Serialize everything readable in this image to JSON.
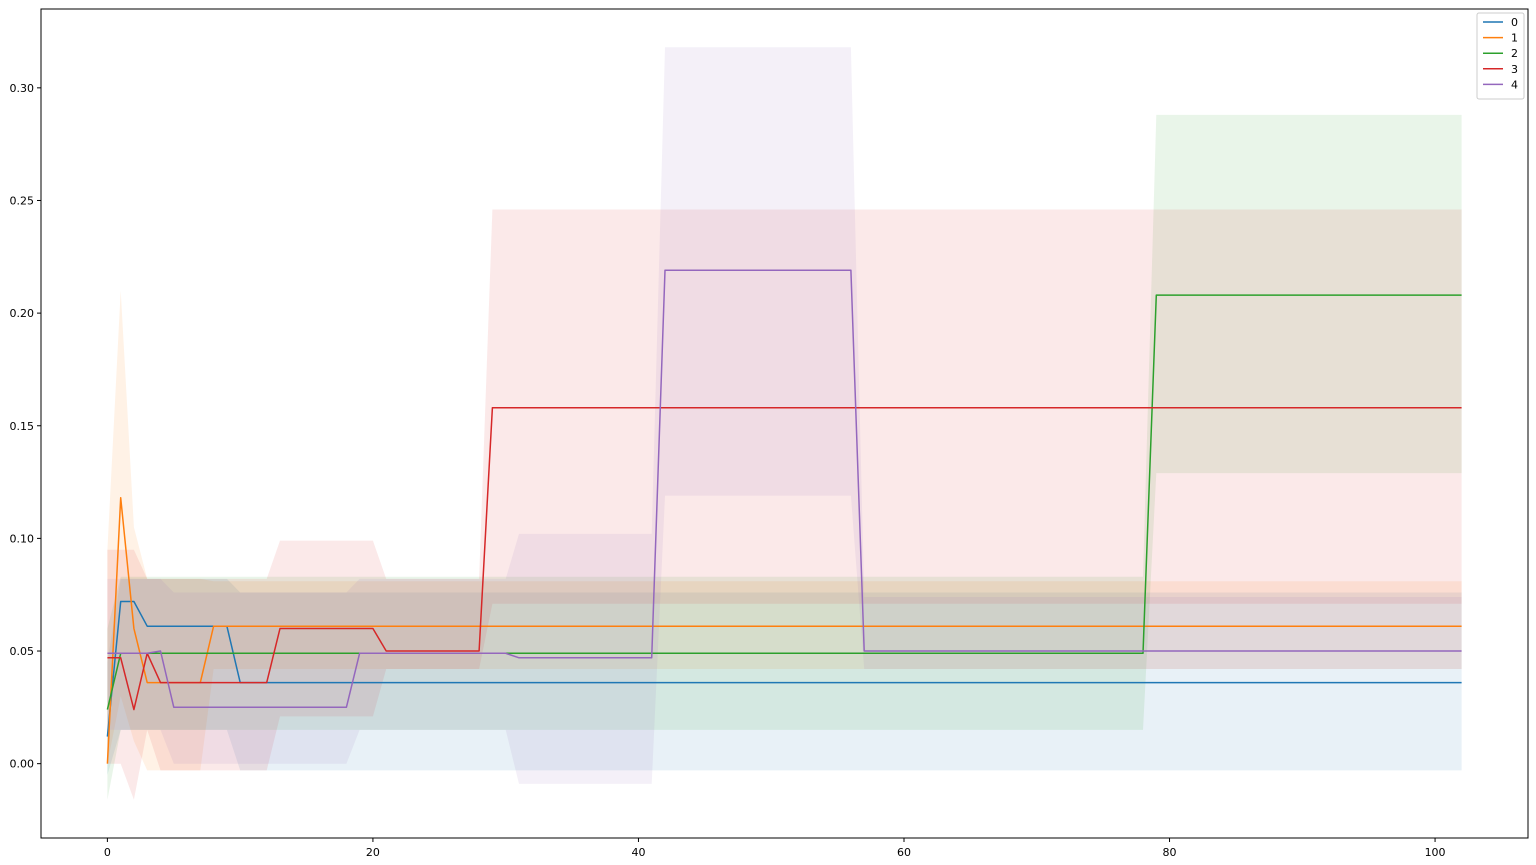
{
  "chart_data": {
    "type": "line",
    "title": "",
    "xlabel": "",
    "ylabel": "",
    "xlim": [
      -5,
      107
    ],
    "ylim": [
      -0.033,
      0.335
    ],
    "xticks": [
      0,
      20,
      40,
      60,
      80,
      100
    ],
    "yticks": [
      0.0,
      0.05,
      0.1,
      0.15,
      0.2,
      0.25,
      0.3
    ],
    "xtick_labels": [
      "0",
      "20",
      "40",
      "60",
      "80",
      "100"
    ],
    "ytick_labels": [
      "0.00",
      "0.05",
      "0.10",
      "0.15",
      "0.20",
      "0.25",
      "0.30"
    ],
    "grid": false,
    "legend_position": "top-right",
    "band_opacity": 0.1,
    "series": [
      {
        "name": "0",
        "color": "#1f77b4",
        "points": [
          [
            0,
            0.012
          ],
          [
            1,
            0.072
          ],
          [
            2,
            0.072
          ],
          [
            3,
            0.061
          ],
          [
            9,
            0.061
          ],
          [
            10,
            0.036
          ],
          [
            102,
            0.036
          ]
        ],
        "band_upper": [
          [
            0,
            0.045
          ],
          [
            1,
            0.082
          ],
          [
            3,
            0.082
          ],
          [
            9,
            0.082
          ],
          [
            10,
            0.076
          ],
          [
            102,
            0.076
          ]
        ],
        "band_lower": [
          [
            0,
            -0.005
          ],
          [
            1,
            0.015
          ],
          [
            3,
            0.015
          ],
          [
            9,
            0.015
          ],
          [
            10,
            -0.003
          ],
          [
            102,
            -0.003
          ]
        ]
      },
      {
        "name": "1",
        "color": "#ff7f0e",
        "points": [
          [
            0,
            0.0
          ],
          [
            1,
            0.118
          ],
          [
            2,
            0.06
          ],
          [
            3,
            0.036
          ],
          [
            7,
            0.036
          ],
          [
            8,
            0.061
          ],
          [
            102,
            0.061
          ]
        ],
        "band_upper": [
          [
            0,
            0.095
          ],
          [
            1,
            0.21
          ],
          [
            2,
            0.105
          ],
          [
            3,
            0.082
          ],
          [
            7,
            0.082
          ],
          [
            8,
            0.081
          ],
          [
            102,
            0.081
          ]
        ],
        "band_lower": [
          [
            0,
            0.0
          ],
          [
            1,
            0.03
          ],
          [
            2,
            0.01
          ],
          [
            3,
            -0.003
          ],
          [
            7,
            -0.003
          ],
          [
            8,
            0.042
          ],
          [
            102,
            0.042
          ]
        ]
      },
      {
        "name": "2",
        "color": "#2ca02c",
        "points": [
          [
            0,
            0.024
          ],
          [
            1,
            0.049
          ],
          [
            78,
            0.049
          ],
          [
            79,
            0.208
          ],
          [
            102,
            0.208
          ]
        ],
        "band_upper": [
          [
            0,
            0.06
          ],
          [
            1,
            0.083
          ],
          [
            78,
            0.083
          ],
          [
            79,
            0.288
          ],
          [
            102,
            0.288
          ]
        ],
        "band_lower": [
          [
            0,
            -0.016
          ],
          [
            1,
            0.015
          ],
          [
            78,
            0.015
          ],
          [
            79,
            0.129
          ],
          [
            102,
            0.129
          ]
        ]
      },
      {
        "name": "3",
        "color": "#d62728",
        "points": [
          [
            0,
            0.047
          ],
          [
            1,
            0.047
          ],
          [
            2,
            0.024
          ],
          [
            3,
            0.049
          ],
          [
            4,
            0.036
          ],
          [
            12,
            0.036
          ],
          [
            13,
            0.06
          ],
          [
            20,
            0.06
          ],
          [
            21,
            0.05
          ],
          [
            28,
            0.05
          ],
          [
            29,
            0.158
          ],
          [
            102,
            0.158
          ]
        ],
        "band_upper": [
          [
            0,
            0.095
          ],
          [
            1,
            0.095
          ],
          [
            2,
            0.095
          ],
          [
            3,
            0.082
          ],
          [
            4,
            0.082
          ],
          [
            12,
            0.082
          ],
          [
            13,
            0.099
          ],
          [
            20,
            0.099
          ],
          [
            21,
            0.082
          ],
          [
            28,
            0.082
          ],
          [
            29,
            0.246
          ],
          [
            102,
            0.246
          ]
        ],
        "band_lower": [
          [
            0,
            0.0
          ],
          [
            1,
            0.0
          ],
          [
            2,
            -0.016
          ],
          [
            3,
            0.015
          ],
          [
            4,
            -0.003
          ],
          [
            12,
            -0.003
          ],
          [
            13,
            0.021
          ],
          [
            20,
            0.021
          ],
          [
            21,
            0.042
          ],
          [
            28,
            0.042
          ],
          [
            29,
            0.071
          ],
          [
            102,
            0.071
          ]
        ]
      },
      {
        "name": "4",
        "color": "#9467bd",
        "points": [
          [
            0,
            0.049
          ],
          [
            3,
            0.049
          ],
          [
            4,
            0.05
          ],
          [
            5,
            0.025
          ],
          [
            18,
            0.025
          ],
          [
            19,
            0.049
          ],
          [
            30,
            0.049
          ],
          [
            31,
            0.047
          ],
          [
            41,
            0.047
          ],
          [
            42,
            0.219
          ],
          [
            56,
            0.219
          ],
          [
            57,
            0.05
          ],
          [
            102,
            0.05
          ]
        ],
        "band_upper": [
          [
            0,
            0.082
          ],
          [
            3,
            0.082
          ],
          [
            4,
            0.082
          ],
          [
            5,
            0.076
          ],
          [
            18,
            0.076
          ],
          [
            19,
            0.082
          ],
          [
            30,
            0.082
          ],
          [
            31,
            0.102
          ],
          [
            41,
            0.102
          ],
          [
            42,
            0.318
          ],
          [
            56,
            0.318
          ],
          [
            57,
            0.074
          ],
          [
            102,
            0.074
          ]
        ],
        "band_lower": [
          [
            0,
            0.015
          ],
          [
            3,
            0.015
          ],
          [
            4,
            0.015
          ],
          [
            5,
            0.0
          ],
          [
            18,
            0.0
          ],
          [
            19,
            0.015
          ],
          [
            30,
            0.015
          ],
          [
            31,
            -0.009
          ],
          [
            41,
            -0.009
          ],
          [
            42,
            0.119
          ],
          [
            56,
            0.119
          ],
          [
            57,
            0.042
          ],
          [
            102,
            0.042
          ]
        ]
      }
    ]
  }
}
